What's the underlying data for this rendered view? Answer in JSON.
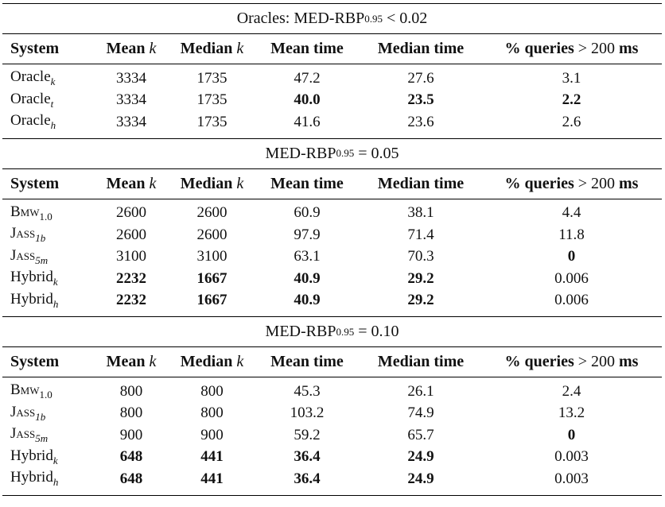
{
  "sections": [
    {
      "title": "Oracles: MED-RBP",
      "title_sub": "0.95",
      "title_tail": " < 0.02",
      "headers": [
        "System",
        "Mean",
        "k",
        "Median",
        "k",
        "Mean time",
        "Median time",
        "% queries",
        " > 200 ",
        "ms"
      ],
      "rows": [
        {
          "sys": "Oracle",
          "sub": "k",
          "mean_k": "3334",
          "median_k": "1735",
          "mean_t": "47.2",
          "median_t": "27.6",
          "pct": "3.1"
        },
        {
          "sys": "Oracle",
          "sub": "t",
          "mean_k": "3334",
          "median_k": "1735",
          "mean_t": "40.0",
          "median_t": "23.5",
          "pct": "2.2"
        },
        {
          "sys": "Oracle",
          "sub": "h",
          "mean_k": "3334",
          "median_k": "1735",
          "mean_t": "41.6",
          "median_t": "23.6",
          "pct": "2.6"
        }
      ]
    },
    {
      "title": "MED-RBP",
      "title_sub": "0.95",
      "title_tail": " = 0.05",
      "rows": [
        {
          "sys": "Bmw",
          "sub": "1.0",
          "mean_k": "2600",
          "median_k": "2600",
          "mean_t": "60.9",
          "median_t": "38.1",
          "pct": "4.4"
        },
        {
          "sys": "Jass",
          "sub": "1b",
          "mean_k": "2600",
          "median_k": "2600",
          "mean_t": "97.9",
          "median_t": "71.4",
          "pct": "11.8"
        },
        {
          "sys": "Jass",
          "sub": "5m",
          "mean_k": "3100",
          "median_k": "3100",
          "mean_t": "63.1",
          "median_t": "70.3",
          "pct": "0"
        },
        {
          "sys": "Hybrid",
          "sub": "k",
          "mean_k": "2232",
          "median_k": "1667",
          "mean_t": "40.9",
          "median_t": "29.2",
          "pct": "0.006"
        },
        {
          "sys": "Hybrid",
          "sub": "h",
          "mean_k": "2232",
          "median_k": "1667",
          "mean_t": "40.9",
          "median_t": "29.2",
          "pct": "0.006"
        }
      ]
    },
    {
      "title": "MED-RBP",
      "title_sub": "0.95",
      "title_tail": " = 0.10",
      "rows": [
        {
          "sys": "Bmw",
          "sub": "1.0",
          "mean_k": "800",
          "median_k": "800",
          "mean_t": "45.3",
          "median_t": "26.1",
          "pct": "2.4"
        },
        {
          "sys": "Jass",
          "sub": "1b",
          "mean_k": "800",
          "median_k": "800",
          "mean_t": "103.2",
          "median_t": "74.9",
          "pct": "13.2"
        },
        {
          "sys": "Jass",
          "sub": "5m",
          "mean_k": "900",
          "median_k": "900",
          "mean_t": "59.2",
          "median_t": "65.7",
          "pct": "0"
        },
        {
          "sys": "Hybrid",
          "sub": "k",
          "mean_k": "648",
          "median_k": "441",
          "mean_t": "36.4",
          "median_t": "24.9",
          "pct": "0.003"
        },
        {
          "sys": "Hybrid",
          "sub": "h",
          "mean_k": "648",
          "median_k": "441",
          "mean_t": "36.4",
          "median_t": "24.9",
          "pct": "0.003"
        }
      ]
    }
  ],
  "header": {
    "system": "System",
    "mean": "Mean ",
    "median": "Median ",
    "k": "k",
    "mean_time": "Mean time",
    "median_time": "Median time",
    "pct_a": "% queries",
    "pct_b": " > 200 ",
    "pct_c": "ms"
  }
}
